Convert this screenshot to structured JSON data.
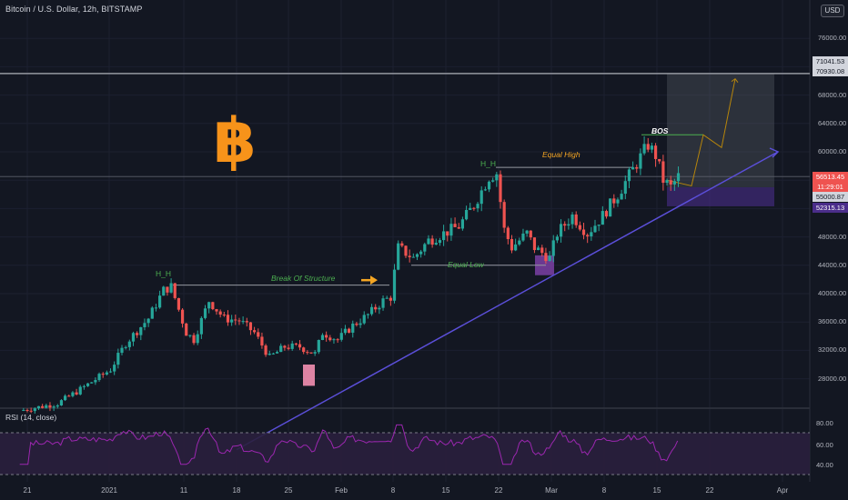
{
  "header": {
    "title": "Bitcoin / U.S. Dollar, 12h, BITSTAMP",
    "currency": "USD"
  },
  "colors": {
    "background": "#131722",
    "up": "#26a69a",
    "down": "#ef5350",
    "trendline": "#5b4fd9",
    "rsi_line": "#9c27b0",
    "rsi_band": "#2a1f3d",
    "bitcoin_orange": "#f7931a",
    "structure_label": "#4caf50",
    "equal_high_label": "#f5a623"
  },
  "price_axis": {
    "ticks": [
      "76000.00",
      "72000.00",
      "68000.00",
      "64000.00",
      "60000.00",
      "56000.00",
      "52000.00",
      "48000.00",
      "44000.00",
      "40000.00",
      "36000.00",
      "32000.00",
      "28000.00"
    ],
    "top_label": "80000.00"
  },
  "price_tags": [
    {
      "value": "71041.53",
      "bg": "#d1d4dc",
      "fg": "#131722"
    },
    {
      "value": "70930.08",
      "bg": "#d1d4dc",
      "fg": "#131722"
    },
    {
      "value": "56513.45",
      "bg": "#ef5350",
      "fg": "#ffffff"
    },
    {
      "value": "11:29:01",
      "bg": "#ef5350",
      "fg": "#ffffff"
    },
    {
      "value": "55000.87",
      "bg": "#d1d4dc",
      "fg": "#131722"
    },
    {
      "value": "52315.13",
      "bg": "#4a2d8a",
      "fg": "#ffffff"
    }
  ],
  "time_axis": [
    "21",
    "2021",
    "11",
    "18",
    "25",
    "Feb",
    "8",
    "15",
    "22",
    "Mar",
    "8",
    "15",
    "22",
    "Apr"
  ],
  "annotations": {
    "hh_left": "H_H",
    "hh_right": "H_H",
    "break_of_structure": "Break Of Structure",
    "equal_high": "Equal High",
    "equal_low": "Equal Low",
    "bos": "BOS"
  },
  "rsi": {
    "title": "RSI (14, close)",
    "levels": [
      "80.00",
      "60.00",
      "40.00"
    ]
  },
  "chart_data": {
    "type": "candlestick",
    "title": "Bitcoin / U.S. Dollar, 12h, BITSTAMP",
    "y_axis": {
      "min": 24000,
      "max": 80000,
      "unit": "USD"
    },
    "markers": {
      "last_price": 56513.45,
      "levels": [
        71041.53,
        70930.08,
        55000.87,
        52315.13
      ]
    },
    "close_path": [
      [
        "2020-12-20",
        23500
      ],
      [
        "2020-12-25",
        24500
      ],
      [
        "2020-12-28",
        26500
      ],
      [
        "2021-01-01",
        29300
      ],
      [
        "2021-01-03",
        33000
      ],
      [
        "2021-01-06",
        36500
      ],
      [
        "2021-01-08",
        40500
      ],
      [
        "2021-01-09",
        41000
      ],
      [
        "2021-01-11",
        34500
      ],
      [
        "2021-01-12",
        33500
      ],
      [
        "2021-01-14",
        39000
      ],
      [
        "2021-01-16",
        36500
      ],
      [
        "2021-01-18",
        36200
      ],
      [
        "2021-01-20",
        34500
      ],
      [
        "2021-01-22",
        31000
      ],
      [
        "2021-01-24",
        32500
      ],
      [
        "2021-01-26",
        32500
      ],
      [
        "2021-01-28",
        31500
      ],
      [
        "2021-01-29",
        34500
      ],
      [
        "2021-01-31",
        33500
      ],
      [
        "2021-02-02",
        35500
      ],
      [
        "2021-02-04",
        37000
      ],
      [
        "2021-02-06",
        39000
      ],
      [
        "2021-02-07",
        39500
      ],
      [
        "2021-02-08",
        46500
      ],
      [
        "2021-02-10",
        45000
      ],
      [
        "2021-02-12",
        47500
      ],
      [
        "2021-02-14",
        48500
      ],
      [
        "2021-02-16",
        49500
      ],
      [
        "2021-02-18",
        52500
      ],
      [
        "2021-02-20",
        56500
      ],
      [
        "2021-02-21",
        57000
      ],
      [
        "2021-02-22",
        49000
      ],
      [
        "2021-02-23",
        46500
      ],
      [
        "2021-02-25",
        48500
      ],
      [
        "2021-02-26",
        46500
      ],
      [
        "2021-02-28",
        45000
      ],
      [
        "2021-03-01",
        48500
      ],
      [
        "2021-03-03",
        51000
      ],
      [
        "2021-03-05",
        48500
      ],
      [
        "2021-03-07",
        51000
      ],
      [
        "2021-03-09",
        54000
      ],
      [
        "2021-03-11",
        57500
      ],
      [
        "2021-03-13",
        61000
      ],
      [
        "2021-03-14",
        59500
      ],
      [
        "2021-03-15",
        56000
      ],
      [
        "2021-03-16",
        55000
      ],
      [
        "2021-03-17",
        56500
      ]
    ]
  }
}
